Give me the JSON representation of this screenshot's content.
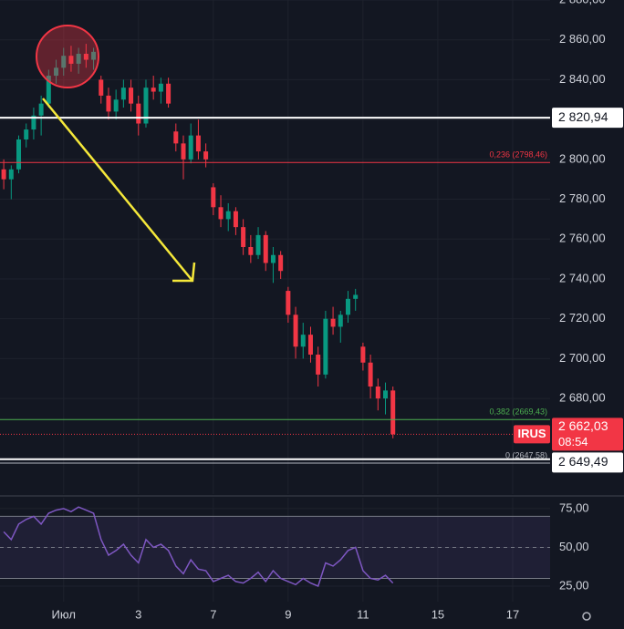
{
  "chart_data": [
    {
      "type": "candlestick",
      "x": [
        0,
        1,
        2,
        3,
        4,
        5,
        6,
        7,
        8,
        9,
        10,
        11,
        12,
        13,
        14,
        15,
        16,
        17,
        18,
        19,
        20,
        21,
        22,
        23,
        24,
        25,
        26,
        27,
        28,
        29,
        30,
        31,
        32,
        33,
        34,
        35,
        36,
        37,
        38,
        39,
        40,
        41,
        42,
        43,
        44,
        45,
        46,
        47,
        48,
        49,
        50,
        51,
        52
      ],
      "open": [
        2795,
        2790,
        2795,
        2810,
        2815,
        2822,
        2828,
        2842,
        2846,
        2852,
        2848,
        2853,
        2850,
        2840,
        2832,
        2824,
        2830,
        2836,
        2828,
        2818,
        2836,
        2834,
        2838,
        2814,
        2808,
        2800,
        2812,
        2804,
        2786,
        2776,
        2770,
        2774,
        2766,
        2756,
        2752,
        2762,
        2748,
        2752,
        2734,
        2722,
        2706,
        2712,
        2702,
        2692,
        2720,
        2716,
        2722,
        2730,
        2706,
        2698,
        2686,
        2680,
        2684
      ],
      "high": [
        2800,
        2797,
        2812,
        2818,
        2826,
        2832,
        2845,
        2850,
        2856,
        2857,
        2856,
        2858,
        2856,
        2842,
        2836,
        2835,
        2840,
        2840,
        2832,
        2840,
        2842,
        2841,
        2841,
        2818,
        2812,
        2818,
        2820,
        2808,
        2788,
        2782,
        2778,
        2776,
        2770,
        2762,
        2766,
        2764,
        2756,
        2754,
        2736,
        2726,
        2718,
        2716,
        2706,
        2724,
        2726,
        2724,
        2734,
        2735,
        2708,
        2702,
        2690,
        2688,
        2686
      ],
      "low": [
        2785,
        2780,
        2793,
        2806,
        2810,
        2812,
        2826,
        2838,
        2842,
        2844,
        2843,
        2846,
        2845,
        2828,
        2820,
        2820,
        2826,
        2824,
        2812,
        2816,
        2830,
        2828,
        2826,
        2804,
        2790,
        2798,
        2800,
        2796,
        2772,
        2766,
        2764,
        2762,
        2752,
        2748,
        2750,
        2744,
        2738,
        2740,
        2718,
        2700,
        2700,
        2698,
        2686,
        2690,
        2712,
        2708,
        2718,
        2724,
        2694,
        2680,
        2674,
        2672,
        2660
      ],
      "close": [
        2790,
        2795,
        2810,
        2815,
        2822,
        2828,
        2842,
        2846,
        2852,
        2848,
        2853,
        2850,
        2854,
        2832,
        2824,
        2830,
        2836,
        2828,
        2818,
        2836,
        2834,
        2838,
        2828,
        2808,
        2800,
        2812,
        2804,
        2800,
        2776,
        2770,
        2774,
        2766,
        2756,
        2752,
        2762,
        2748,
        2752,
        2744,
        2722,
        2706,
        2712,
        2702,
        2692,
        2720,
        2716,
        2722,
        2730,
        2732,
        2698,
        2686,
        2680,
        2684,
        2662.03
      ],
      "up_color": "#089981",
      "down_color": "#f23645",
      "xlim": [
        -0.5,
        73
      ],
      "ylim": [
        2632,
        2880
      ],
      "yticks": [
        {
          "value": 2680,
          "label": "2 680,00"
        },
        {
          "value": 2700,
          "label": "2 700,00"
        },
        {
          "value": 2720,
          "label": "2 720,00"
        },
        {
          "value": 2740,
          "label": "2 740,00"
        },
        {
          "value": 2760,
          "label": "2 760,00"
        },
        {
          "value": 2780,
          "label": "2 780,00"
        },
        {
          "value": 2800,
          "label": "2 800,00"
        },
        {
          "value": 2820,
          "label": "2 820,00"
        },
        {
          "value": 2840,
          "label": "2 840,00"
        },
        {
          "value": 2860,
          "label": "2 860,00"
        },
        {
          "value": 2880,
          "label": "2 880,00"
        }
      ],
      "fib_levels": [
        {
          "value": 2798.46,
          "label": "0,236 (2798,46)",
          "color": "#f23645"
        },
        {
          "value": 2669.43,
          "label": "0,382 (2669,43)",
          "color": "#4caf50"
        },
        {
          "value": 2647.58,
          "label": "0 (2647,58)",
          "color": "#b2b5be"
        }
      ],
      "price_tags": [
        {
          "value": 2820.94,
          "label": "2 820,94"
        },
        {
          "value": 2649.49,
          "label": "2 649,49"
        }
      ],
      "last_price": {
        "value": 2662.03,
        "label": "2 662,03",
        "symbol": "IRUS",
        "countdown": "08:54",
        "color": "#f23645"
      },
      "grid": true
    },
    {
      "type": "line",
      "x": [
        0,
        1,
        2,
        3,
        4,
        5,
        6,
        7,
        8,
        9,
        10,
        11,
        12,
        13,
        14,
        15,
        16,
        17,
        18,
        19,
        20,
        21,
        22,
        23,
        24,
        25,
        26,
        27,
        28,
        29,
        30,
        31,
        32,
        33,
        34,
        35,
        36,
        37,
        38,
        39,
        40,
        41,
        42,
        43,
        44,
        45,
        46,
        47,
        48,
        49,
        50,
        51,
        52
      ],
      "values": [
        60,
        55,
        65,
        68,
        70,
        65,
        72,
        74,
        75,
        73,
        76,
        74,
        72,
        55,
        45,
        48,
        52,
        45,
        40,
        55,
        50,
        52,
        48,
        38,
        33,
        42,
        36,
        35,
        28,
        30,
        32,
        28,
        27,
        30,
        34,
        28,
        35,
        30,
        28,
        26,
        30,
        27,
        25,
        40,
        38,
        42,
        48,
        50,
        35,
        30,
        29,
        32,
        27
      ],
      "color": "#7e57c2",
      "bands": [
        30,
        70
      ],
      "xlim": [
        -0.5,
        73
      ],
      "ylim": [
        15,
        82
      ],
      "yticks": [
        {
          "value": 25,
          "label": "25,00"
        },
        {
          "value": 50,
          "label": "50,00"
        },
        {
          "value": 75,
          "label": "75,00"
        }
      ],
      "xticks": [
        {
          "value": 8,
          "label": "Июл"
        },
        {
          "value": 18,
          "label": "3"
        },
        {
          "value": 28,
          "label": "7"
        },
        {
          "value": 38,
          "label": "9"
        },
        {
          "value": 48,
          "label": "11"
        },
        {
          "value": 58,
          "label": "15"
        },
        {
          "value": 68,
          "label": "17"
        }
      ],
      "grid": true
    }
  ]
}
